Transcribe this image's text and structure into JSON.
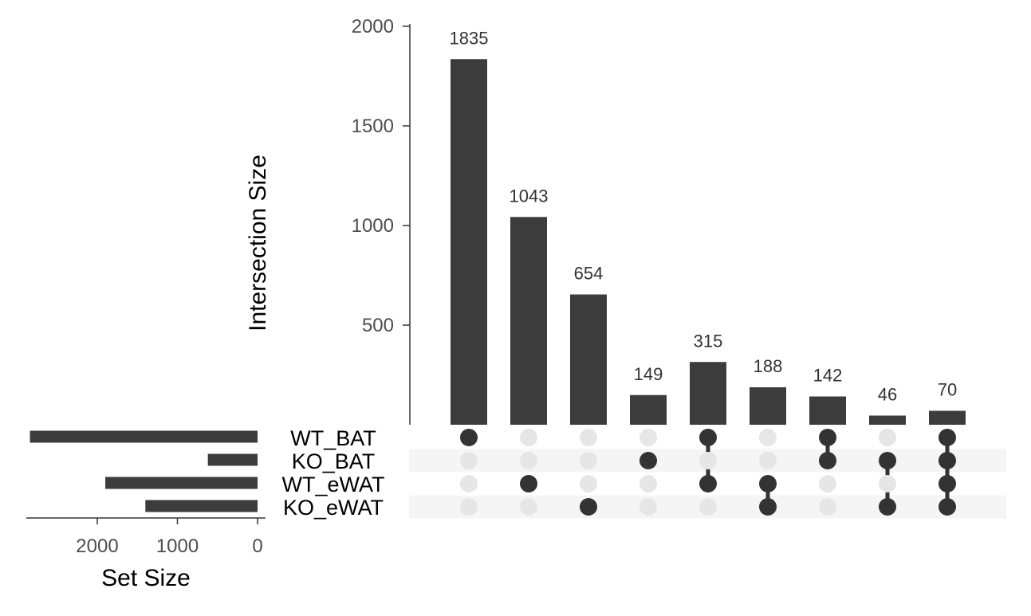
{
  "chart_data": {
    "type": "upset",
    "sets": [
      "WT_BAT",
      "KO_BAT",
      "WT_eWAT",
      "KO_eWAT"
    ],
    "set_sizes": [
      2840,
      620,
      1900,
      1400
    ],
    "set_size_axis": {
      "label": "Set Size",
      "ticks": [
        2000,
        1000,
        0
      ],
      "xlim": [
        3050,
        0
      ]
    },
    "intersection_axis": {
      "label": "Intersection Size",
      "ticks": [
        500,
        1000,
        1500,
        2000
      ],
      "ylim": [
        0,
        2100
      ]
    },
    "intersections": [
      {
        "sets": [
          "WT_BAT"
        ],
        "size": 1835
      },
      {
        "sets": [
          "WT_eWAT"
        ],
        "size": 1043
      },
      {
        "sets": [
          "KO_eWAT"
        ],
        "size": 654
      },
      {
        "sets": [
          "KO_BAT"
        ],
        "size": 149
      },
      {
        "sets": [
          "WT_BAT",
          "WT_eWAT"
        ],
        "size": 315
      },
      {
        "sets": [
          "WT_eWAT",
          "KO_eWAT"
        ],
        "size": 188
      },
      {
        "sets": [
          "WT_BAT",
          "KO_BAT"
        ],
        "size": 142
      },
      {
        "sets": [
          "KO_BAT",
          "KO_eWAT"
        ],
        "size": 46
      },
      {
        "sets": [
          "WT_BAT",
          "KO_BAT",
          "WT_eWAT",
          "KO_eWAT"
        ],
        "size": 70
      }
    ],
    "colors": {
      "bar": "#3c3c3c",
      "dot_on": "#333333",
      "dot_off": "#e6e6e6",
      "stripe": "#f5f5f5"
    }
  }
}
